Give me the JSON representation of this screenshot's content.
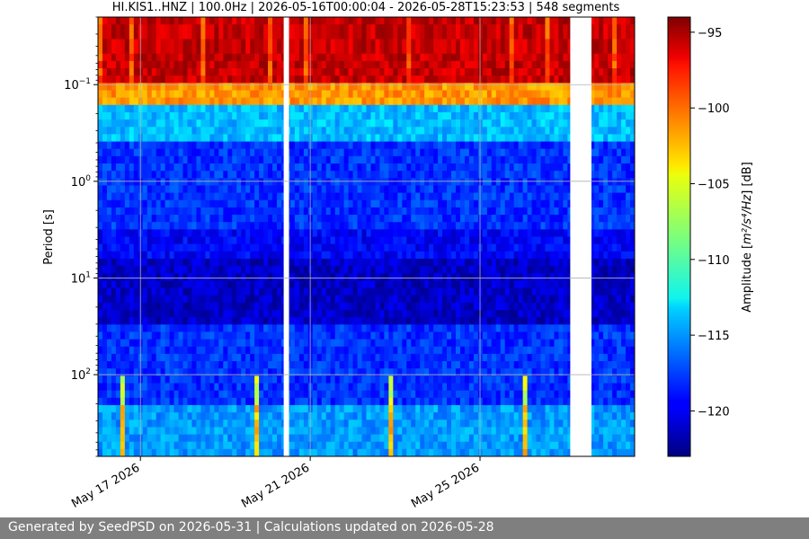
{
  "chart_data": {
    "type": "heatmap",
    "title": "HI.KIS1..HNZ | 100.0Hz | 2026-05-16T00:00:04 - 2026-05-28T15:23:53 | 548 segments",
    "ylabel": "Period [s]",
    "yscale": "log",
    "y_inverted": true,
    "ylim": [
      0.02,
      700
    ],
    "y_ticks": [
      {
        "value": 0.1,
        "base": "10",
        "exp": "−1"
      },
      {
        "value": 1,
        "base": "10",
        "exp": "0"
      },
      {
        "value": 10,
        "base": "10",
        "exp": "1"
      },
      {
        "value": 100,
        "base": "10",
        "exp": "2"
      }
    ],
    "xlim": [
      "2026-05-16T00:00:04",
      "2026-05-28T15:23:53"
    ],
    "x_ticks": [
      {
        "value": "2026-05-17",
        "label": "May 17 2026"
      },
      {
        "value": "2026-05-21",
        "label": "May 21 2026"
      },
      {
        "value": "2026-05-25",
        "label": "May 25 2026"
      }
    ],
    "grid": true,
    "data_gaps": [
      {
        "start": "2026-05-20T09:00:00",
        "end": "2026-05-20T12:00:00"
      },
      {
        "start": "2026-05-27T03:00:00",
        "end": "2026-05-27T15:00:00"
      }
    ],
    "colorbar": {
      "label_prefix": "Amplitude [",
      "label_math": "m²/s⁴/Hz",
      "label_suffix": "] [dB]",
      "colormap": "jet",
      "range": [
        -123,
        -94
      ],
      "ticks": [
        -95,
        -100,
        -105,
        -110,
        -115,
        -120
      ]
    }
  },
  "footer": {
    "text": "Generated by SeedPSD on 2026-05-31 | Calculations updated on 2026-05-28"
  }
}
